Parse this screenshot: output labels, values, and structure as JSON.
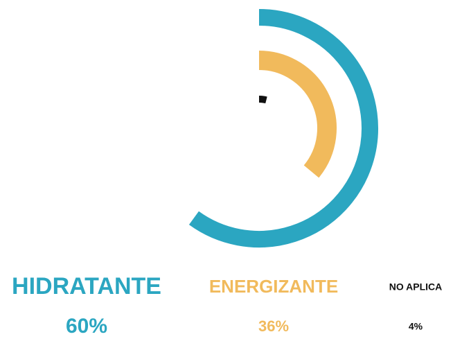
{
  "chart_data": {
    "type": "radial_bar",
    "categories": [
      "HIDRATANTE",
      "ENERGIZANTE",
      "NO APLICA"
    ],
    "values": [
      60,
      36,
      4
    ],
    "value_labels": [
      "60%",
      "36%",
      "4%"
    ],
    "colors": [
      "#2ba6c1",
      "#f1ba5c",
      "#111111"
    ]
  }
}
